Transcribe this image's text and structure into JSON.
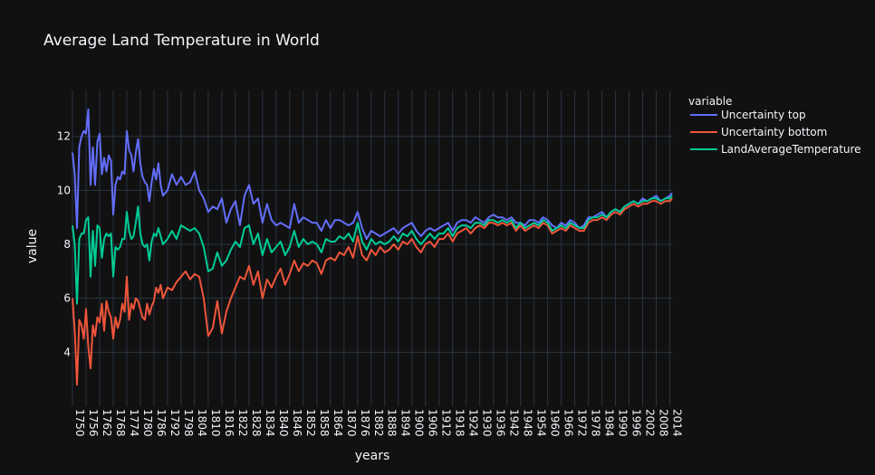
{
  "chart_data": {
    "type": "line",
    "title": "Average Land Temperature in World",
    "xlabel": "years",
    "ylabel": "value",
    "xlim": [
      1750,
      2015
    ],
    "ylim": [
      2.0,
      13.7
    ],
    "yticks": [
      4,
      6,
      8,
      10,
      12
    ],
    "xticks": [
      1750,
      1756,
      1762,
      1768,
      1774,
      1780,
      1786,
      1792,
      1798,
      1804,
      1810,
      1816,
      1822,
      1828,
      1834,
      1840,
      1846,
      1852,
      1858,
      1864,
      1870,
      1876,
      1882,
      1888,
      1894,
      1900,
      1906,
      1912,
      1918,
      1924,
      1930,
      1936,
      1942,
      1948,
      1954,
      1960,
      1966,
      1972,
      1978,
      1984,
      1990,
      1996,
      2002,
      2008,
      2014
    ],
    "xtick_labels": [
      "1750",
      "1756",
      "1762",
      "1768",
      "1774",
      "1780",
      "1786",
      "1792",
      "1798",
      "1804",
      "1810",
      "1816",
      "1822",
      "1828",
      "1834",
      "1840",
      "1846",
      "1852",
      "1858",
      "1864",
      "1870",
      "1876",
      "1882",
      "1888",
      "1894",
      "1900",
      "1906",
      "1912",
      "1918",
      "1924",
      "1930",
      "1936",
      "1942",
      "1948",
      "1954",
      "1960",
      "1966",
      "1972",
      "1978",
      "1984",
      "1990",
      "1996",
      "2002",
      "2008",
      "2014"
    ],
    "legend_title": "variable",
    "legend_position": "right",
    "grid": true,
    "series": [
      {
        "name": "Uncertainty top",
        "color": "#636efa",
        "x": [
          1750,
          1751,
          1752,
          1753,
          1754,
          1755,
          1756,
          1757,
          1758,
          1759,
          1760,
          1761,
          1762,
          1763,
          1764,
          1765,
          1766,
          1767,
          1768,
          1769,
          1770,
          1771,
          1772,
          1773,
          1774,
          1775,
          1776,
          1777,
          1778,
          1779,
          1780,
          1781,
          1782,
          1783,
          1784,
          1785,
          1786,
          1787,
          1788,
          1789,
          1790,
          1792,
          1794,
          1796,
          1798,
          1800,
          1802,
          1804,
          1806,
          1808,
          1810,
          1812,
          1814,
          1816,
          1818,
          1820,
          1822,
          1824,
          1826,
          1828,
          1830,
          1832,
          1834,
          1836,
          1838,
          1840,
          1842,
          1844,
          1846,
          1848,
          1850,
          1852,
          1854,
          1856,
          1858,
          1860,
          1862,
          1864,
          1866,
          1868,
          1870,
          1872,
          1874,
          1876,
          1878,
          1880,
          1882,
          1884,
          1886,
          1888,
          1890,
          1892,
          1894,
          1896,
          1898,
          1900,
          1902,
          1904,
          1906,
          1908,
          1910,
          1912,
          1914,
          1916,
          1918,
          1920,
          1922,
          1924,
          1926,
          1928,
          1930,
          1932,
          1934,
          1936,
          1938,
          1940,
          1942,
          1944,
          1946,
          1948,
          1950,
          1952,
          1954,
          1956,
          1958,
          1960,
          1962,
          1964,
          1966,
          1968,
          1970,
          1972,
          1974,
          1976,
          1978,
          1980,
          1982,
          1984,
          1986,
          1988,
          1990,
          1992,
          1994,
          1996,
          1998,
          2000,
          2002,
          2004,
          2006,
          2008,
          2010,
          2012,
          2014,
          2015
        ],
        "y": [
          11.4,
          10.6,
          8.6,
          11.6,
          12.0,
          12.2,
          12.1,
          13.0,
          10.2,
          11.6,
          10.2,
          11.8,
          12.1,
          10.6,
          11.2,
          10.7,
          11.3,
          11.1,
          9.1,
          10.2,
          10.5,
          10.4,
          10.7,
          10.6,
          12.2,
          11.5,
          11.3,
          10.7,
          11.4,
          11.9,
          11.0,
          10.5,
          10.3,
          10.2,
          9.6,
          10.3,
          10.8,
          10.4,
          11.0,
          10.2,
          9.8,
          10.0,
          10.6,
          10.2,
          10.5,
          10.2,
          10.3,
          10.7,
          10.0,
          9.7,
          9.2,
          9.4,
          9.3,
          9.7,
          8.8,
          9.3,
          9.6,
          8.7,
          9.8,
          10.2,
          9.5,
          9.7,
          8.8,
          9.5,
          8.9,
          8.7,
          8.8,
          8.7,
          8.6,
          9.5,
          8.8,
          9.0,
          8.9,
          8.8,
          8.8,
          8.5,
          8.9,
          8.6,
          8.9,
          8.9,
          8.8,
          8.7,
          8.8,
          9.2,
          8.6,
          8.2,
          8.5,
          8.4,
          8.3,
          8.4,
          8.5,
          8.6,
          8.4,
          8.6,
          8.7,
          8.8,
          8.5,
          8.3,
          8.5,
          8.6,
          8.5,
          8.6,
          8.7,
          8.8,
          8.5,
          8.8,
          8.9,
          8.9,
          8.8,
          9.0,
          8.9,
          8.8,
          9.0,
          9.1,
          9.0,
          9.0,
          8.9,
          9.0,
          8.8,
          8.8,
          8.7,
          8.9,
          8.9,
          8.8,
          9.0,
          8.9,
          8.7,
          8.6,
          8.8,
          8.7,
          8.9,
          8.8,
          8.6,
          8.7,
          9.0,
          9.0,
          9.1,
          9.2,
          9.0,
          9.2,
          9.3,
          9.2,
          9.4,
          9.5,
          9.6,
          9.5,
          9.7,
          9.6,
          9.7,
          9.8,
          9.6,
          9.7,
          9.8,
          9.9
        ]
      },
      {
        "name": "Uncertainty bottom",
        "color": "#ef553b",
        "x": [
          1750,
          1751,
          1752,
          1753,
          1754,
          1755,
          1756,
          1757,
          1758,
          1759,
          1760,
          1761,
          1762,
          1763,
          1764,
          1765,
          1766,
          1767,
          1768,
          1769,
          1770,
          1771,
          1772,
          1773,
          1774,
          1775,
          1776,
          1777,
          1778,
          1779,
          1780,
          1781,
          1782,
          1783,
          1784,
          1785,
          1786,
          1787,
          1788,
          1789,
          1790,
          1792,
          1794,
          1796,
          1798,
          1800,
          1802,
          1804,
          1806,
          1808,
          1810,
          1812,
          1814,
          1816,
          1818,
          1820,
          1822,
          1824,
          1826,
          1828,
          1830,
          1832,
          1834,
          1836,
          1838,
          1840,
          1842,
          1844,
          1846,
          1848,
          1850,
          1852,
          1854,
          1856,
          1858,
          1860,
          1862,
          1864,
          1866,
          1868,
          1870,
          1872,
          1874,
          1876,
          1878,
          1880,
          1882,
          1884,
          1886,
          1888,
          1890,
          1892,
          1894,
          1896,
          1898,
          1900,
          1902,
          1904,
          1906,
          1908,
          1910,
          1912,
          1914,
          1916,
          1918,
          1920,
          1922,
          1924,
          1926,
          1928,
          1930,
          1932,
          1934,
          1936,
          1938,
          1940,
          1942,
          1944,
          1946,
          1948,
          1950,
          1952,
          1954,
          1956,
          1958,
          1960,
          1962,
          1964,
          1966,
          1968,
          1970,
          1972,
          1974,
          1976,
          1978,
          1980,
          1982,
          1984,
          1986,
          1988,
          1990,
          1992,
          1994,
          1996,
          1998,
          2000,
          2002,
          2004,
          2006,
          2008,
          2010,
          2012,
          2014,
          2015
        ],
        "y": [
          6.0,
          4.8,
          2.8,
          5.2,
          5.0,
          4.5,
          5.6,
          4.2,
          3.4,
          5.0,
          4.6,
          5.3,
          5.1,
          5.8,
          4.8,
          5.9,
          5.5,
          5.3,
          4.5,
          5.3,
          4.9,
          5.2,
          5.8,
          5.5,
          6.8,
          5.2,
          5.8,
          5.6,
          6.0,
          5.9,
          5.6,
          5.3,
          5.2,
          5.8,
          5.4,
          5.7,
          5.9,
          6.4,
          6.2,
          6.5,
          6.0,
          6.4,
          6.3,
          6.6,
          6.8,
          7.0,
          6.7,
          6.9,
          6.8,
          6.0,
          4.6,
          4.9,
          5.9,
          4.7,
          5.5,
          6.0,
          6.4,
          6.8,
          6.7,
          7.2,
          6.5,
          7.0,
          6.0,
          6.7,
          6.4,
          6.8,
          7.1,
          6.5,
          6.9,
          7.4,
          7.0,
          7.3,
          7.2,
          7.4,
          7.3,
          6.9,
          7.4,
          7.5,
          7.4,
          7.7,
          7.6,
          7.9,
          7.5,
          8.3,
          7.6,
          7.4,
          7.8,
          7.6,
          7.9,
          7.7,
          7.8,
          8.0,
          7.8,
          8.1,
          8.0,
          8.2,
          7.9,
          7.7,
          8.0,
          8.1,
          7.9,
          8.2,
          8.2,
          8.4,
          8.1,
          8.4,
          8.5,
          8.6,
          8.4,
          8.6,
          8.7,
          8.6,
          8.8,
          8.8,
          8.7,
          8.8,
          8.7,
          8.8,
          8.5,
          8.7,
          8.5,
          8.6,
          8.7,
          8.6,
          8.8,
          8.7,
          8.4,
          8.5,
          8.6,
          8.5,
          8.7,
          8.6,
          8.5,
          8.5,
          8.8,
          8.9,
          8.9,
          9.0,
          8.9,
          9.1,
          9.2,
          9.1,
          9.3,
          9.4,
          9.5,
          9.4,
          9.5,
          9.5,
          9.6,
          9.6,
          9.5,
          9.6,
          9.6,
          9.7
        ]
      },
      {
        "name": "LandAverageTemperature",
        "color": "#00cc96",
        "x": [
          1750,
          1751,
          1752,
          1753,
          1754,
          1755,
          1756,
          1757,
          1758,
          1759,
          1760,
          1761,
          1762,
          1763,
          1764,
          1765,
          1766,
          1767,
          1768,
          1769,
          1770,
          1771,
          1772,
          1773,
          1774,
          1775,
          1776,
          1777,
          1778,
          1779,
          1780,
          1781,
          1782,
          1783,
          1784,
          1785,
          1786,
          1787,
          1788,
          1789,
          1790,
          1792,
          1794,
          1796,
          1798,
          1800,
          1802,
          1804,
          1806,
          1808,
          1810,
          1812,
          1814,
          1816,
          1818,
          1820,
          1822,
          1824,
          1826,
          1828,
          1830,
          1832,
          1834,
          1836,
          1838,
          1840,
          1842,
          1844,
          1846,
          1848,
          1850,
          1852,
          1854,
          1856,
          1858,
          1860,
          1862,
          1864,
          1866,
          1868,
          1870,
          1872,
          1874,
          1876,
          1878,
          1880,
          1882,
          1884,
          1886,
          1888,
          1890,
          1892,
          1894,
          1896,
          1898,
          1900,
          1902,
          1904,
          1906,
          1908,
          1910,
          1912,
          1914,
          1916,
          1918,
          1920,
          1922,
          1924,
          1926,
          1928,
          1930,
          1932,
          1934,
          1936,
          1938,
          1940,
          1942,
          1944,
          1946,
          1948,
          1950,
          1952,
          1954,
          1956,
          1958,
          1960,
          1962,
          1964,
          1966,
          1968,
          1970,
          1972,
          1974,
          1976,
          1978,
          1980,
          1982,
          1984,
          1986,
          1988,
          1990,
          1992,
          1994,
          1996,
          1998,
          2000,
          2002,
          2004,
          2006,
          2008,
          2010,
          2012,
          2014,
          2015
        ],
        "y": [
          8.7,
          8.0,
          5.8,
          8.2,
          8.4,
          8.4,
          8.9,
          9.0,
          6.8,
          8.5,
          7.2,
          8.7,
          8.6,
          7.5,
          8.2,
          8.4,
          8.3,
          8.4,
          6.8,
          7.9,
          7.8,
          7.9,
          8.2,
          8.2,
          9.2,
          8.5,
          8.2,
          8.3,
          8.8,
          9.4,
          8.4,
          8.0,
          7.9,
          8.0,
          7.4,
          8.1,
          8.4,
          8.3,
          8.6,
          8.3,
          8.0,
          8.2,
          8.5,
          8.2,
          8.7,
          8.6,
          8.5,
          8.6,
          8.4,
          7.9,
          7.0,
          7.1,
          7.7,
          7.2,
          7.4,
          7.8,
          8.1,
          7.9,
          8.6,
          8.7,
          8.0,
          8.4,
          7.6,
          8.2,
          7.7,
          7.9,
          8.1,
          7.6,
          7.9,
          8.5,
          7.9,
          8.2,
          8.0,
          8.1,
          8.0,
          7.7,
          8.2,
          8.1,
          8.1,
          8.3,
          8.2,
          8.4,
          8.1,
          8.8,
          8.1,
          7.8,
          8.2,
          8.0,
          8.1,
          8.0,
          8.1,
          8.3,
          8.1,
          8.4,
          8.3,
          8.5,
          8.2,
          8.0,
          8.2,
          8.4,
          8.2,
          8.4,
          8.4,
          8.6,
          8.3,
          8.6,
          8.7,
          8.7,
          8.6,
          8.8,
          8.8,
          8.7,
          8.9,
          8.9,
          8.8,
          8.9,
          8.8,
          8.9,
          8.6,
          8.8,
          8.6,
          8.7,
          8.8,
          8.7,
          8.9,
          8.8,
          8.5,
          8.6,
          8.7,
          8.6,
          8.8,
          8.7,
          8.6,
          8.6,
          8.9,
          9.0,
          9.0,
          9.1,
          9.0,
          9.2,
          9.3,
          9.2,
          9.4,
          9.5,
          9.6,
          9.5,
          9.6,
          9.6,
          9.7,
          9.7,
          9.6,
          9.7,
          9.7,
          9.8
        ]
      }
    ]
  }
}
